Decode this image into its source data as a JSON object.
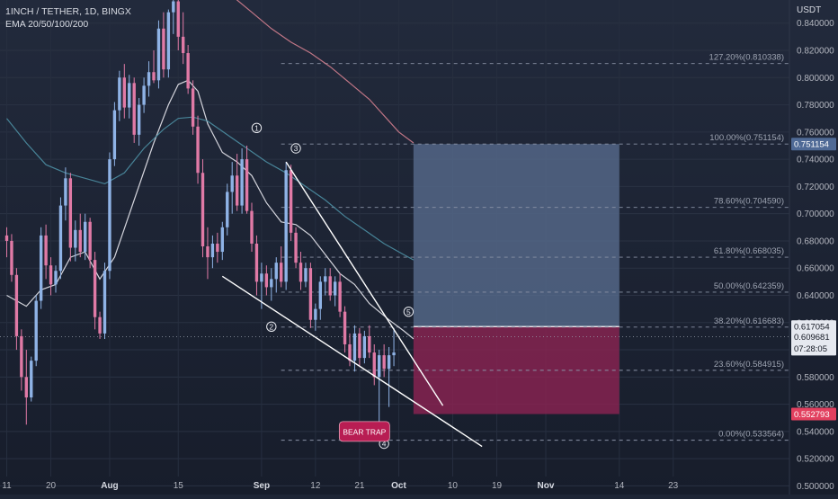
{
  "header": {
    "symbol": "1INCH / TETHER, 1D, BINGX",
    "indicator": "EMA 20/50/100/200"
  },
  "colors": {
    "background": "#1e2535",
    "bull": "#8fb3e6",
    "bear": "#e07aa6",
    "ema_fast": "#e8e8ee",
    "ema_mid": "#4c8fa3",
    "ema_slow": "#d27e8e",
    "target_zone": "#56698a",
    "stop_zone": "#8a2352",
    "text": "#b2b5be",
    "bear_trap": "#b81d53"
  },
  "chart_data": {
    "type": "candlestick",
    "title": "1INCH / TETHER, 1D, BINGX",
    "indicators": [
      "EMA 20",
      "EMA 50",
      "EMA 100",
      "EMA 200"
    ],
    "y_axis": {
      "unit": "USDT",
      "position": "right",
      "range": [
        0.495,
        0.857
      ],
      "ticks": [
        0.5,
        0.52,
        0.54,
        0.56,
        0.58,
        0.6,
        0.62,
        0.64,
        0.66,
        0.68,
        0.7,
        0.72,
        0.74,
        0.76,
        0.78,
        0.8,
        0.82,
        0.84
      ],
      "tick_labels": [
        "0.500000",
        "0.520000",
        "0.540000",
        "0.560000",
        "0.580000",
        "0.600000",
        "0.620000",
        "0.640000",
        "0.660000",
        "0.680000",
        "0.700000",
        "0.720000",
        "0.740000",
        "0.760000",
        "0.780000",
        "0.800000",
        "0.820000",
        "0.840000"
      ]
    },
    "x_axis": {
      "start_day": 0,
      "end_day": 128,
      "tick_days": [
        0,
        9,
        21,
        35,
        52,
        63,
        72,
        80,
        91,
        100,
        110,
        125,
        136
      ],
      "tick_labels": [
        "11",
        "20",
        "Aug",
        "15",
        "Sep",
        "12",
        "21",
        "Oct",
        "10",
        "19",
        "Nov",
        "14",
        "23"
      ]
    },
    "candles": [
      {
        "o": 0.684,
        "h": 0.69,
        "l": 0.668,
        "c": 0.68
      },
      {
        "o": 0.68,
        "h": 0.685,
        "l": 0.65,
        "c": 0.655
      },
      {
        "o": 0.655,
        "h": 0.66,
        "l": 0.6,
        "c": 0.61
      },
      {
        "o": 0.61,
        "h": 0.615,
        "l": 0.57,
        "c": 0.58
      },
      {
        "o": 0.58,
        "h": 0.6,
        "l": 0.545,
        "c": 0.565
      },
      {
        "o": 0.565,
        "h": 0.595,
        "l": 0.562,
        "c": 0.592
      },
      {
        "o": 0.592,
        "h": 0.64,
        "l": 0.588,
        "c": 0.636
      },
      {
        "o": 0.636,
        "h": 0.69,
        "l": 0.63,
        "c": 0.684
      },
      {
        "o": 0.684,
        "h": 0.692,
        "l": 0.652,
        "c": 0.662
      },
      {
        "o": 0.662,
        "h": 0.668,
        "l": 0.64,
        "c": 0.648
      },
      {
        "o": 0.648,
        "h": 0.662,
        "l": 0.642,
        "c": 0.658
      },
      {
        "o": 0.658,
        "h": 0.712,
        "l": 0.652,
        "c": 0.706
      },
      {
        "o": 0.706,
        "h": 0.734,
        "l": 0.695,
        "c": 0.726
      },
      {
        "o": 0.726,
        "h": 0.73,
        "l": 0.665,
        "c": 0.675
      },
      {
        "o": 0.675,
        "h": 0.695,
        "l": 0.665,
        "c": 0.688
      },
      {
        "o": 0.688,
        "h": 0.7,
        "l": 0.668,
        "c": 0.672
      },
      {
        "o": 0.672,
        "h": 0.7,
        "l": 0.666,
        "c": 0.694
      },
      {
        "o": 0.694,
        "h": 0.697,
        "l": 0.66,
        "c": 0.666
      },
      {
        "o": 0.666,
        "h": 0.672,
        "l": 0.615,
        "c": 0.624
      },
      {
        "o": 0.624,
        "h": 0.628,
        "l": 0.608,
        "c": 0.612
      },
      {
        "o": 0.612,
        "h": 0.664,
        "l": 0.608,
        "c": 0.658
      },
      {
        "o": 0.658,
        "h": 0.745,
        "l": 0.652,
        "c": 0.74
      },
      {
        "o": 0.74,
        "h": 0.782,
        "l": 0.735,
        "c": 0.776
      },
      {
        "o": 0.776,
        "h": 0.805,
        "l": 0.768,
        "c": 0.8
      },
      {
        "o": 0.8,
        "h": 0.81,
        "l": 0.77,
        "c": 0.778
      },
      {
        "o": 0.778,
        "h": 0.802,
        "l": 0.77,
        "c": 0.796
      },
      {
        "o": 0.796,
        "h": 0.8,
        "l": 0.752,
        "c": 0.758
      },
      {
        "o": 0.758,
        "h": 0.785,
        "l": 0.75,
        "c": 0.78
      },
      {
        "o": 0.78,
        "h": 0.8,
        "l": 0.774,
        "c": 0.794
      },
      {
        "o": 0.794,
        "h": 0.812,
        "l": 0.786,
        "c": 0.804
      },
      {
        "o": 0.804,
        "h": 0.82,
        "l": 0.796,
        "c": 0.798
      },
      {
        "o": 0.798,
        "h": 0.842,
        "l": 0.792,
        "c": 0.836
      },
      {
        "o": 0.836,
        "h": 0.848,
        "l": 0.8,
        "c": 0.806
      },
      {
        "o": 0.806,
        "h": 0.85,
        "l": 0.8,
        "c": 0.848
      },
      {
        "o": 0.848,
        "h": 0.86,
        "l": 0.832,
        "c": 0.856
      },
      {
        "o": 0.856,
        "h": 0.86,
        "l": 0.82,
        "c": 0.83
      },
      {
        "o": 0.83,
        "h": 0.848,
        "l": 0.81,
        "c": 0.818
      },
      {
        "o": 0.818,
        "h": 0.824,
        "l": 0.788,
        "c": 0.792
      },
      {
        "o": 0.792,
        "h": 0.798,
        "l": 0.758,
        "c": 0.764
      },
      {
        "o": 0.764,
        "h": 0.772,
        "l": 0.722,
        "c": 0.73
      },
      {
        "o": 0.73,
        "h": 0.74,
        "l": 0.668,
        "c": 0.676
      },
      {
        "o": 0.676,
        "h": 0.69,
        "l": 0.652,
        "c": 0.668
      },
      {
        "o": 0.668,
        "h": 0.684,
        "l": 0.66,
        "c": 0.678
      },
      {
        "o": 0.678,
        "h": 0.686,
        "l": 0.664,
        "c": 0.672
      },
      {
        "o": 0.672,
        "h": 0.694,
        "l": 0.666,
        "c": 0.69
      },
      {
        "o": 0.69,
        "h": 0.722,
        "l": 0.684,
        "c": 0.716
      },
      {
        "o": 0.716,
        "h": 0.738,
        "l": 0.7,
        "c": 0.728
      },
      {
        "o": 0.728,
        "h": 0.744,
        "l": 0.702,
        "c": 0.706
      },
      {
        "o": 0.706,
        "h": 0.748,
        "l": 0.7,
        "c": 0.74
      },
      {
        "o": 0.74,
        "h": 0.75,
        "l": 0.7,
        "c": 0.702
      },
      {
        "o": 0.702,
        "h": 0.708,
        "l": 0.672,
        "c": 0.678
      },
      {
        "o": 0.678,
        "h": 0.684,
        "l": 0.64,
        "c": 0.65
      },
      {
        "o": 0.65,
        "h": 0.664,
        "l": 0.63,
        "c": 0.656
      },
      {
        "o": 0.656,
        "h": 0.662,
        "l": 0.64,
        "c": 0.646
      },
      {
        "o": 0.646,
        "h": 0.66,
        "l": 0.636,
        "c": 0.652
      },
      {
        "o": 0.652,
        "h": 0.668,
        "l": 0.642,
        "c": 0.664
      },
      {
        "o": 0.664,
        "h": 0.676,
        "l": 0.646,
        "c": 0.65
      },
      {
        "o": 0.65,
        "h": 0.738,
        "l": 0.644,
        "c": 0.732
      },
      {
        "o": 0.732,
        "h": 0.736,
        "l": 0.68,
        "c": 0.686
      },
      {
        "o": 0.686,
        "h": 0.69,
        "l": 0.66,
        "c": 0.664
      },
      {
        "o": 0.664,
        "h": 0.672,
        "l": 0.644,
        "c": 0.65
      },
      {
        "o": 0.65,
        "h": 0.664,
        "l": 0.646,
        "c": 0.66
      },
      {
        "o": 0.66,
        "h": 0.664,
        "l": 0.616,
        "c": 0.622
      },
      {
        "o": 0.622,
        "h": 0.634,
        "l": 0.614,
        "c": 0.63
      },
      {
        "o": 0.63,
        "h": 0.654,
        "l": 0.622,
        "c": 0.65
      },
      {
        "o": 0.65,
        "h": 0.66,
        "l": 0.64,
        "c": 0.654
      },
      {
        "o": 0.654,
        "h": 0.66,
        "l": 0.636,
        "c": 0.64
      },
      {
        "o": 0.64,
        "h": 0.654,
        "l": 0.632,
        "c": 0.65
      },
      {
        "o": 0.65,
        "h": 0.656,
        "l": 0.624,
        "c": 0.628
      },
      {
        "o": 0.628,
        "h": 0.632,
        "l": 0.598,
        "c": 0.604
      },
      {
        "o": 0.604,
        "h": 0.612,
        "l": 0.588,
        "c": 0.592
      },
      {
        "o": 0.592,
        "h": 0.618,
        "l": 0.584,
        "c": 0.612
      },
      {
        "o": 0.612,
        "h": 0.616,
        "l": 0.588,
        "c": 0.594
      },
      {
        "o": 0.594,
        "h": 0.614,
        "l": 0.59,
        "c": 0.61
      },
      {
        "o": 0.61,
        "h": 0.618,
        "l": 0.594,
        "c": 0.598
      },
      {
        "o": 0.598,
        "h": 0.604,
        "l": 0.574,
        "c": 0.58
      },
      {
        "o": 0.58,
        "h": 0.6,
        "l": 0.534,
        "c": 0.596
      },
      {
        "o": 0.596,
        "h": 0.604,
        "l": 0.58,
        "c": 0.586
      },
      {
        "o": 0.586,
        "h": 0.602,
        "l": 0.558,
        "c": 0.596
      },
      {
        "o": 0.596,
        "h": 0.616,
        "l": 0.588,
        "c": 0.598
      }
    ],
    "ema": [
      {
        "name": "EMA 20",
        "color": "#e8e8ee",
        "points": [
          [
            0,
            0.64
          ],
          [
            4,
            0.632
          ],
          [
            7,
            0.644
          ],
          [
            10,
            0.648
          ],
          [
            13,
            0.668
          ],
          [
            16,
            0.672
          ],
          [
            19,
            0.652
          ],
          [
            22,
            0.668
          ],
          [
            26,
            0.71
          ],
          [
            30,
            0.752
          ],
          [
            33,
            0.78
          ],
          [
            35,
            0.795
          ],
          [
            37,
            0.798
          ],
          [
            39,
            0.79
          ],
          [
            41,
            0.766
          ],
          [
            44,
            0.745
          ],
          [
            47,
            0.738
          ],
          [
            50,
            0.728
          ],
          [
            53,
            0.708
          ],
          [
            56,
            0.694
          ],
          [
            59,
            0.692
          ],
          [
            62,
            0.684
          ],
          [
            65,
            0.67
          ],
          [
            68,
            0.656
          ],
          [
            71,
            0.648
          ],
          [
            74,
            0.634
          ],
          [
            78,
            0.622
          ],
          [
            81,
            0.614
          ],
          [
            83,
            0.608
          ]
        ]
      },
      {
        "name": "EMA 50",
        "color": "#4c8fa3",
        "points": [
          [
            0,
            0.77
          ],
          [
            4,
            0.752
          ],
          [
            8,
            0.736
          ],
          [
            12,
            0.73
          ],
          [
            16,
            0.726
          ],
          [
            20,
            0.722
          ],
          [
            24,
            0.73
          ],
          [
            28,
            0.748
          ],
          [
            32,
            0.762
          ],
          [
            35,
            0.77
          ],
          [
            38,
            0.771
          ],
          [
            41,
            0.768
          ],
          [
            45,
            0.758
          ],
          [
            49,
            0.748
          ],
          [
            53,
            0.738
          ],
          [
            57,
            0.73
          ],
          [
            61,
            0.72
          ],
          [
            65,
            0.71
          ],
          [
            69,
            0.698
          ],
          [
            73,
            0.688
          ],
          [
            77,
            0.678
          ],
          [
            81,
            0.67
          ],
          [
            83,
            0.666
          ]
        ]
      },
      {
        "name": "EMA 100",
        "color": "#d27e8e",
        "points": [
          [
            46,
            0.86
          ],
          [
            50,
            0.848
          ],
          [
            54,
            0.836
          ],
          [
            58,
            0.826
          ],
          [
            62,
            0.818
          ],
          [
            66,
            0.808
          ],
          [
            70,
            0.796
          ],
          [
            74,
            0.784
          ],
          [
            77,
            0.772
          ],
          [
            80,
            0.76
          ],
          [
            83,
            0.752
          ]
        ]
      }
    ],
    "fib_levels": [
      {
        "ratio": "127.20%",
        "price": 0.810338,
        "label": "127.20%(0.810338)"
      },
      {
        "ratio": "100.00%",
        "price": 0.751154,
        "label": "100.00%(0.751154)"
      },
      {
        "ratio": "78.60%",
        "price": 0.70459,
        "label": "78.60%(0.704590)"
      },
      {
        "ratio": "61.80%",
        "price": 0.668035,
        "label": "61.80%(0.668035)"
      },
      {
        "ratio": "50.00%",
        "price": 0.642359,
        "label": "50.00%(0.642359)"
      },
      {
        "ratio": "38.20%",
        "price": 0.616683,
        "label": "38.20%(0.616683)"
      },
      {
        "ratio": "23.60%",
        "price": 0.584915,
        "label": "23.60%(0.584915)"
      },
      {
        "ratio": "0.00%",
        "price": 0.533564,
        "label": "0.00%(0.533564)"
      }
    ],
    "trendlines": [
      {
        "name": "wedge-upper",
        "from": [
          57,
          0.738
        ],
        "to": [
          89,
          0.559
        ]
      },
      {
        "name": "wedge-lower",
        "from": [
          44,
          0.654
        ],
        "to": [
          97,
          0.529
        ]
      }
    ],
    "wave_labels": [
      {
        "label": "1",
        "day": 51,
        "price": 0.763
      },
      {
        "label": "2",
        "day": 54,
        "price": 0.617
      },
      {
        "label": "3",
        "day": 59,
        "price": 0.748
      },
      {
        "label": "4",
        "day": 77,
        "price": 0.531
      },
      {
        "label": "5",
        "day": 82,
        "price": 0.628
      }
    ],
    "position": {
      "entry": 0.617054,
      "target": 0.751154,
      "stop": 0.552793,
      "from_day": 83,
      "to_day": 125
    },
    "annotation": {
      "text": "BEAR TRAP",
      "day": 73,
      "price": 0.54
    },
    "price_tags": [
      {
        "price": 0.751154,
        "label": "0.751154",
        "color": "#4f6a96"
      },
      {
        "price": 0.617054,
        "label": "0.617054",
        "color": "#e6e9f0",
        "text_color": "#131722"
      },
      {
        "price": 0.609681,
        "label": "0.609681",
        "color": "#e6e9f0",
        "text_color": "#131722"
      },
      {
        "price": 0.552793,
        "label": "0.552793",
        "color": "#e2405f"
      }
    ],
    "countdown": "07:28:05",
    "current_price": 0.609681
  }
}
